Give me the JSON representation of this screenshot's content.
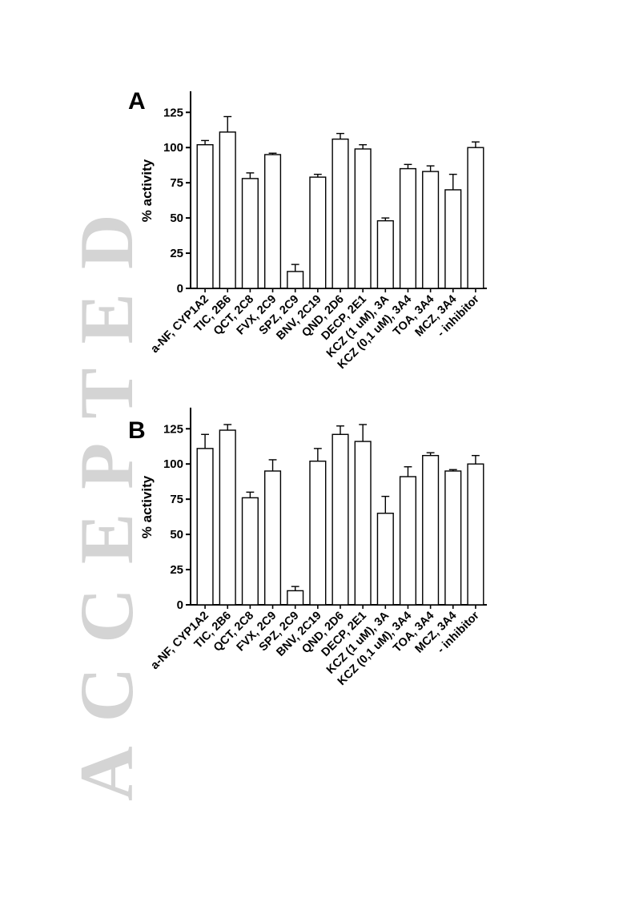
{
  "chart_data": [
    {
      "type": "bar",
      "panel": "A",
      "ylabel": "% activity",
      "ylim": [
        0,
        140
      ],
      "yticks": [
        0,
        25,
        50,
        75,
        100,
        125
      ],
      "grid": false,
      "categories": [
        "a-NF, CYP1A2",
        "TIC, 2B6",
        "QCT, 2C8",
        "FVX, 2C9",
        "SPZ, 2C9",
        "BNV, 2C19",
        "QND, 2D6",
        "DECP, 2E1",
        "KCZ (1 uM), 3A",
        "KCZ (0,1 uM), 3A4",
        "TOA, 3A4",
        "MCZ, 3A4",
        "- inhibitor"
      ],
      "values": [
        102,
        111,
        78,
        95,
        12,
        79,
        106,
        99,
        48,
        85,
        83,
        70,
        100
      ],
      "errors": [
        3,
        11,
        4,
        1,
        5,
        2,
        4,
        3,
        2,
        3,
        4,
        11,
        4
      ]
    },
    {
      "type": "bar",
      "panel": "B",
      "ylabel": "% activity",
      "ylim": [
        0,
        140
      ],
      "yticks": [
        0,
        25,
        50,
        75,
        100,
        125
      ],
      "grid": false,
      "categories": [
        "a-NF, CYP1A2",
        "TIC, 2B6",
        "QCT, 2C8",
        "FVX, 2C9",
        "SPZ, 2C9",
        "BNV, 2C19",
        "QND, 2D6",
        "DECP, 2E1",
        "KCZ (1 uM), 3A",
        "KCZ (0,1 uM), 3A4",
        "TOA, 3A4",
        "MCZ, 3A4",
        "- inhibitor"
      ],
      "values": [
        111,
        124,
        76,
        95,
        10,
        102,
        121,
        116,
        65,
        91,
        106,
        95,
        100
      ],
      "errors": [
        10,
        4,
        4,
        8,
        3,
        9,
        6,
        12,
        12,
        7,
        2,
        1,
        6
      ]
    }
  ],
  "watermark": {
    "text": "ACCEPTED",
    "color": "#c8c8c8"
  }
}
